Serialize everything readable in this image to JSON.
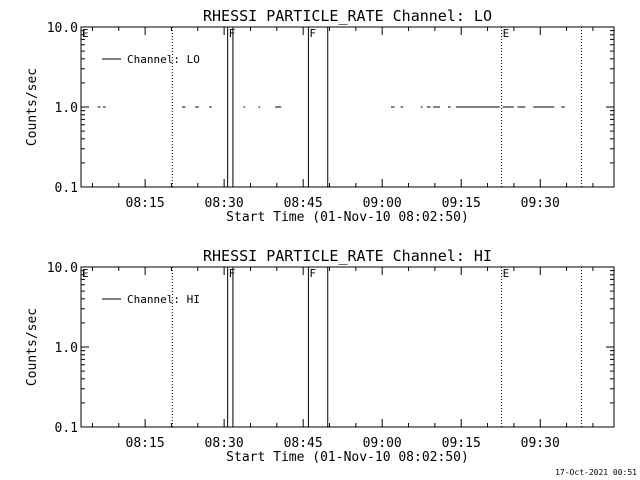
{
  "footer": {
    "timestamp": "17-Oct-2021 00:51"
  },
  "chart_data": [
    {
      "type": "line",
      "title": "RHESSI PARTICLE_RATE Channel: LO",
      "xlabel": "Start Time (01-Nov-10 08:02:50)",
      "ylabel": "Counts/sec",
      "y_scale": "log",
      "ylim": [
        0.1,
        10.0
      ],
      "y_ticks": [
        "0.1",
        "1.0",
        "10.0"
      ],
      "x_range_minutes": [
        "08:02:50",
        "09:44:00"
      ],
      "x_ticks": [
        "08:15",
        "08:30",
        "08:45",
        "09:00",
        "09:15",
        "09:30"
      ],
      "legend": {
        "label": "Channel: LO",
        "position": "top-left"
      },
      "flags": [
        {
          "label": "E",
          "time": "08:02:50",
          "style": "dotted"
        },
        {
          "label": "",
          "time": "08:20:10",
          "style": "dotted"
        },
        {
          "label": "F",
          "time": "08:30:40",
          "style": "solid"
        },
        {
          "label": "",
          "time": "08:31:40",
          "style": "solid"
        },
        {
          "label": "F",
          "time": "08:46:00",
          "style": "solid"
        },
        {
          "label": "",
          "time": "08:49:40",
          "style": "solid"
        },
        {
          "label": "E",
          "time": "09:22:40",
          "style": "dotted"
        },
        {
          "label": "",
          "time": "09:37:50",
          "style": "dotted"
        }
      ],
      "series": [
        {
          "name": "Channel: LO",
          "segments": [
            [
              [
                "08:06:00",
                1.0
              ],
              [
                "08:06:30",
                1.0
              ]
            ],
            [
              [
                "08:07:00",
                1.0
              ],
              [
                "08:07:30",
                1.0
              ]
            ],
            [
              [
                "08:22:00",
                1.0
              ],
              [
                "08:22:40",
                1.0
              ]
            ],
            [
              [
                "08:24:30",
                1.0
              ],
              [
                "08:25:10",
                1.0
              ]
            ],
            [
              [
                "08:27:10",
                1.0
              ],
              [
                "08:27:40",
                1.0
              ]
            ],
            [
              [
                "08:33:40",
                1.0
              ],
              [
                "08:34:00",
                1.0
              ]
            ],
            [
              [
                "08:36:30",
                1.0
              ],
              [
                "08:36:50",
                1.0
              ]
            ],
            [
              [
                "08:39:40",
                1.0
              ],
              [
                "08:40:50",
                1.0
              ]
            ],
            [
              [
                "09:01:40",
                1.0
              ],
              [
                "09:02:20",
                1.0
              ]
            ],
            [
              [
                "09:03:30",
                1.0
              ],
              [
                "09:04:00",
                1.0
              ]
            ],
            [
              [
                "09:07:20",
                1.0
              ],
              [
                "09:07:40",
                1.0
              ]
            ],
            [
              [
                "09:08:30",
                1.0
              ],
              [
                "09:09:10",
                1.0
              ]
            ],
            [
              [
                "09:09:40",
                1.0
              ],
              [
                "09:11:00",
                1.0
              ]
            ],
            [
              [
                "09:12:30",
                1.0
              ],
              [
                "09:13:00",
                1.0
              ]
            ],
            [
              [
                "09:14:00",
                1.0
              ],
              [
                "09:22:20",
                1.0
              ]
            ],
            [
              [
                "09:22:50",
                1.0
              ],
              [
                "09:25:00",
                1.0
              ]
            ],
            [
              [
                "09:25:40",
                1.0
              ],
              [
                "09:27:10",
                1.0
              ]
            ],
            [
              [
                "09:28:40",
                1.0
              ],
              [
                "09:32:40",
                1.0
              ]
            ],
            [
              [
                "09:34:00",
                1.0
              ],
              [
                "09:34:40",
                1.0
              ]
            ]
          ]
        }
      ]
    },
    {
      "type": "line",
      "title": "RHESSI PARTICLE_RATE Channel: HI",
      "xlabel": "Start Time (01-Nov-10 08:02:50)",
      "ylabel": "Counts/sec",
      "y_scale": "log",
      "ylim": [
        0.1,
        10.0
      ],
      "y_ticks": [
        "0.1",
        "1.0",
        "10.0"
      ],
      "x_range_minutes": [
        "08:02:50",
        "09:44:00"
      ],
      "x_ticks": [
        "08:15",
        "08:30",
        "08:45",
        "09:00",
        "09:15",
        "09:30"
      ],
      "legend": {
        "label": "Channel: HI",
        "position": "top-left"
      },
      "flags": [
        {
          "label": "E",
          "time": "08:02:50",
          "style": "dotted"
        },
        {
          "label": "",
          "time": "08:20:10",
          "style": "dotted"
        },
        {
          "label": "F",
          "time": "08:30:40",
          "style": "solid"
        },
        {
          "label": "",
          "time": "08:31:40",
          "style": "solid"
        },
        {
          "label": "F",
          "time": "08:46:00",
          "style": "solid"
        },
        {
          "label": "",
          "time": "08:49:40",
          "style": "solid"
        },
        {
          "label": "E",
          "time": "09:22:40",
          "style": "dotted"
        },
        {
          "label": "",
          "time": "09:37:50",
          "style": "dotted"
        }
      ],
      "series": [
        {
          "name": "Channel: HI",
          "segments": []
        }
      ]
    }
  ]
}
